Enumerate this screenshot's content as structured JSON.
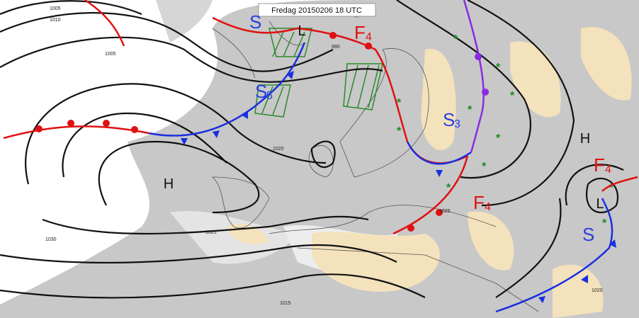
{
  "header": {
    "title": "Fredag 20150206 18 UTC"
  },
  "pressure_centers": [
    {
      "label": "H"
    },
    {
      "label": "H"
    },
    {
      "label": "L"
    },
    {
      "label": "L"
    }
  ],
  "front_labels": [
    {
      "letter": "S"
    },
    {
      "letter": "S",
      "index": "5"
    },
    {
      "letter": "F",
      "index": "4"
    },
    {
      "letter": "S",
      "index": "3"
    },
    {
      "letter": "F",
      "index": "4"
    },
    {
      "letter": "F",
      "index": "4"
    },
    {
      "letter": "S"
    }
  ],
  "isobar_labels": [
    "1005",
    "1010",
    "1005",
    "990",
    "1025",
    "1015",
    "1020",
    "1030",
    "1025",
    "1020"
  ]
}
